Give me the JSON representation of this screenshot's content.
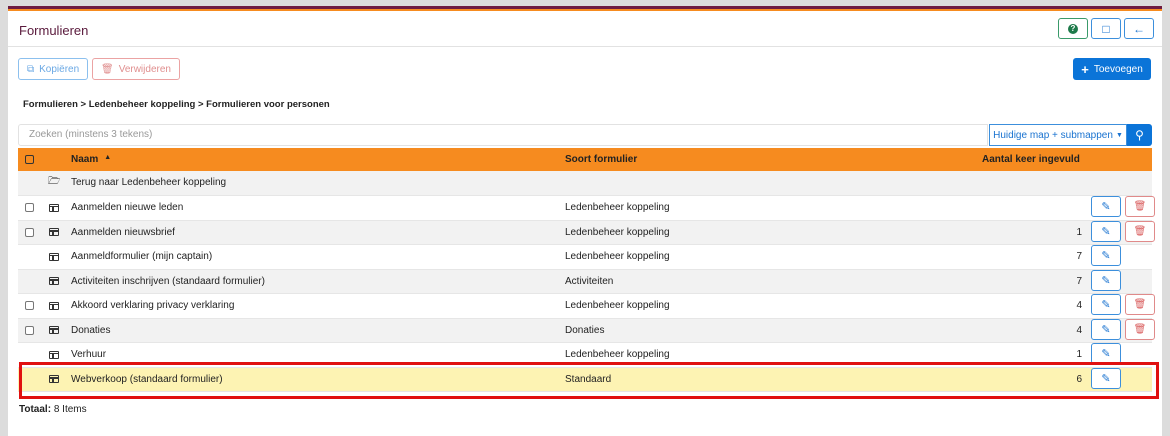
{
  "header": {
    "title": "Formulieren",
    "help_icon": "question-circle-icon",
    "feedback_icon": "comment-icon",
    "back_icon": "arrow-left-icon"
  },
  "toolbar": {
    "copy_label": "Kopiëren",
    "delete_label": "Verwijderen",
    "add_label": "Toevoegen"
  },
  "breadcrumb": "Formulieren > Ledenbeheer koppeling > Formulieren voor personen",
  "search": {
    "placeholder": "Zoeken (minstens 3 tekens)",
    "scope": "Huidige map + submappen"
  },
  "table": {
    "headers": {
      "name": "Naam",
      "type": "Soort formulier",
      "count": "Aantal keer ingevuld"
    },
    "back_row": "Terug naar Ledenbeheer koppeling",
    "rows": [
      {
        "name": "Aanmelden nieuwe leden",
        "type": "Ledenbeheer koppeling",
        "count": "",
        "checkbox": true,
        "delete": true
      },
      {
        "name": "Aanmelden nieuwsbrief",
        "type": "Ledenbeheer koppeling",
        "count": "1",
        "checkbox": true,
        "delete": true
      },
      {
        "name": "Aanmeldformulier (mijn captain)",
        "type": "Ledenbeheer koppeling",
        "count": "7",
        "checkbox": false,
        "delete": false
      },
      {
        "name": "Activiteiten inschrijven (standaard formulier)",
        "type": "Activiteiten",
        "count": "7",
        "checkbox": false,
        "delete": false
      },
      {
        "name": "Akkoord verklaring privacy verklaring",
        "type": "Ledenbeheer koppeling",
        "count": "4",
        "checkbox": true,
        "delete": true
      },
      {
        "name": "Donaties",
        "type": "Donaties",
        "count": "4",
        "checkbox": true,
        "delete": true
      },
      {
        "name": "Verhuur",
        "type": "Ledenbeheer koppeling",
        "count": "1",
        "checkbox": false,
        "delete": false
      },
      {
        "name": "Webverkoop (standaard formulier)",
        "type": "Standaard",
        "count": "6",
        "checkbox": false,
        "delete": false,
        "highlighted": true
      }
    ]
  },
  "footer": {
    "total_label": "Totaal:",
    "total_value": "8 Items"
  },
  "colors": {
    "accent": "#0b74d8",
    "header_orange": "#f68b1f",
    "highlight": "#fdf3b3",
    "annotation_red": "#e01010"
  }
}
